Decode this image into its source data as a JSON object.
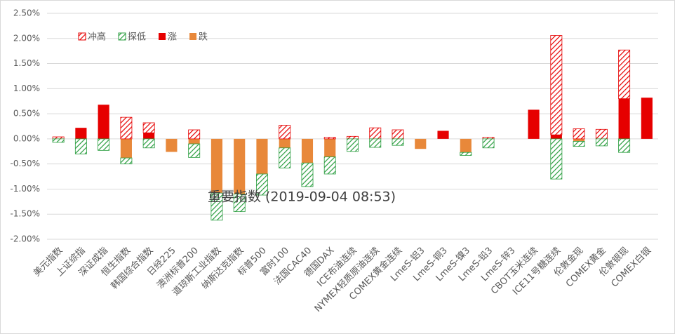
{
  "chart_data": {
    "type": "bar",
    "title": "重要指数 (2019-09-04 08:53)",
    "categories": [
      "美元指数",
      "上证综指",
      "深证成指",
      "恒生指数",
      "韩国综合指数",
      "日经225",
      "澳洲标普200",
      "道琼斯工业指数",
      "纳斯达克指数",
      "标普500",
      "富时100",
      "法国CAC40",
      "德国DAX",
      "ICE布油连续",
      "NYMEX轻质原油连续",
      "COMEX黄金连续",
      "LmeS-铝3",
      "LmeS-铜3",
      "LmeS-镍3",
      "LmeS-铅3",
      "LmeS-锌3",
      "CBOT玉米连续",
      "ICE11号糖连续",
      "伦敦金现",
      "COMEX黄金",
      "伦敦银现",
      "COMEX白银"
    ],
    "series": [
      {
        "name": "冲高",
        "color": "#e60000",
        "hatch": true,
        "values": [
          0.04,
          0,
          0,
          0.43,
          0.2,
          0,
          0.18,
          0,
          0,
          0,
          0.27,
          0,
          0.03,
          0.05,
          0.22,
          0.18,
          0,
          0,
          0,
          0.03,
          0,
          0,
          1.98,
          0.2,
          0.19,
          0.97,
          0
        ]
      },
      {
        "name": "探低",
        "color": "#2a9d3f",
        "hatch": true,
        "values": [
          -0.07,
          -0.3,
          -0.23,
          -0.12,
          -0.18,
          0,
          -0.27,
          -0.54,
          -0.35,
          -0.42,
          -0.4,
          -0.47,
          -0.34,
          -0.25,
          -0.17,
          -0.13,
          0,
          0,
          -0.06,
          -0.18,
          0,
          0,
          -0.8,
          -0.1,
          -0.14,
          -0.27,
          0
        ]
      },
      {
        "name": "涨",
        "color": "#e60000",
        "hatch": false,
        "values": [
          0,
          0.22,
          0.68,
          0,
          0.12,
          0,
          0,
          0,
          0,
          0,
          0,
          0,
          0,
          0,
          0,
          0,
          0,
          0.16,
          0,
          0,
          0,
          0.58,
          0.08,
          0,
          0,
          0.8,
          0.82
        ]
      },
      {
        "name": "跌",
        "color": "#e8883a",
        "hatch": false,
        "values": [
          0,
          0,
          0,
          -0.38,
          0,
          -0.26,
          -0.1,
          -1.08,
          -1.1,
          -0.7,
          -0.18,
          -0.48,
          -0.36,
          0,
          0,
          0,
          -0.2,
          0,
          -0.27,
          0,
          0,
          0,
          0,
          -0.05,
          0,
          0,
          0
        ]
      }
    ],
    "ylim": [
      -2,
      2.5
    ],
    "yticks": [
      {
        "value": 2.5,
        "label": "2.50%"
      },
      {
        "value": 2,
        "label": "2.00%"
      },
      {
        "value": 1.5,
        "label": "1.50%"
      },
      {
        "value": 1,
        "label": "1.00%"
      },
      {
        "value": 0.5,
        "label": "0.50%"
      },
      {
        "value": 0,
        "label": "0.00%"
      },
      {
        "value": -0.5,
        "label": "-0.50%"
      },
      {
        "value": -1,
        "label": "-1.00%"
      },
      {
        "value": -1.5,
        "label": "-1.50%"
      },
      {
        "value": -2,
        "label": "-2.00%"
      }
    ],
    "grid": true,
    "legend": "top-left"
  }
}
